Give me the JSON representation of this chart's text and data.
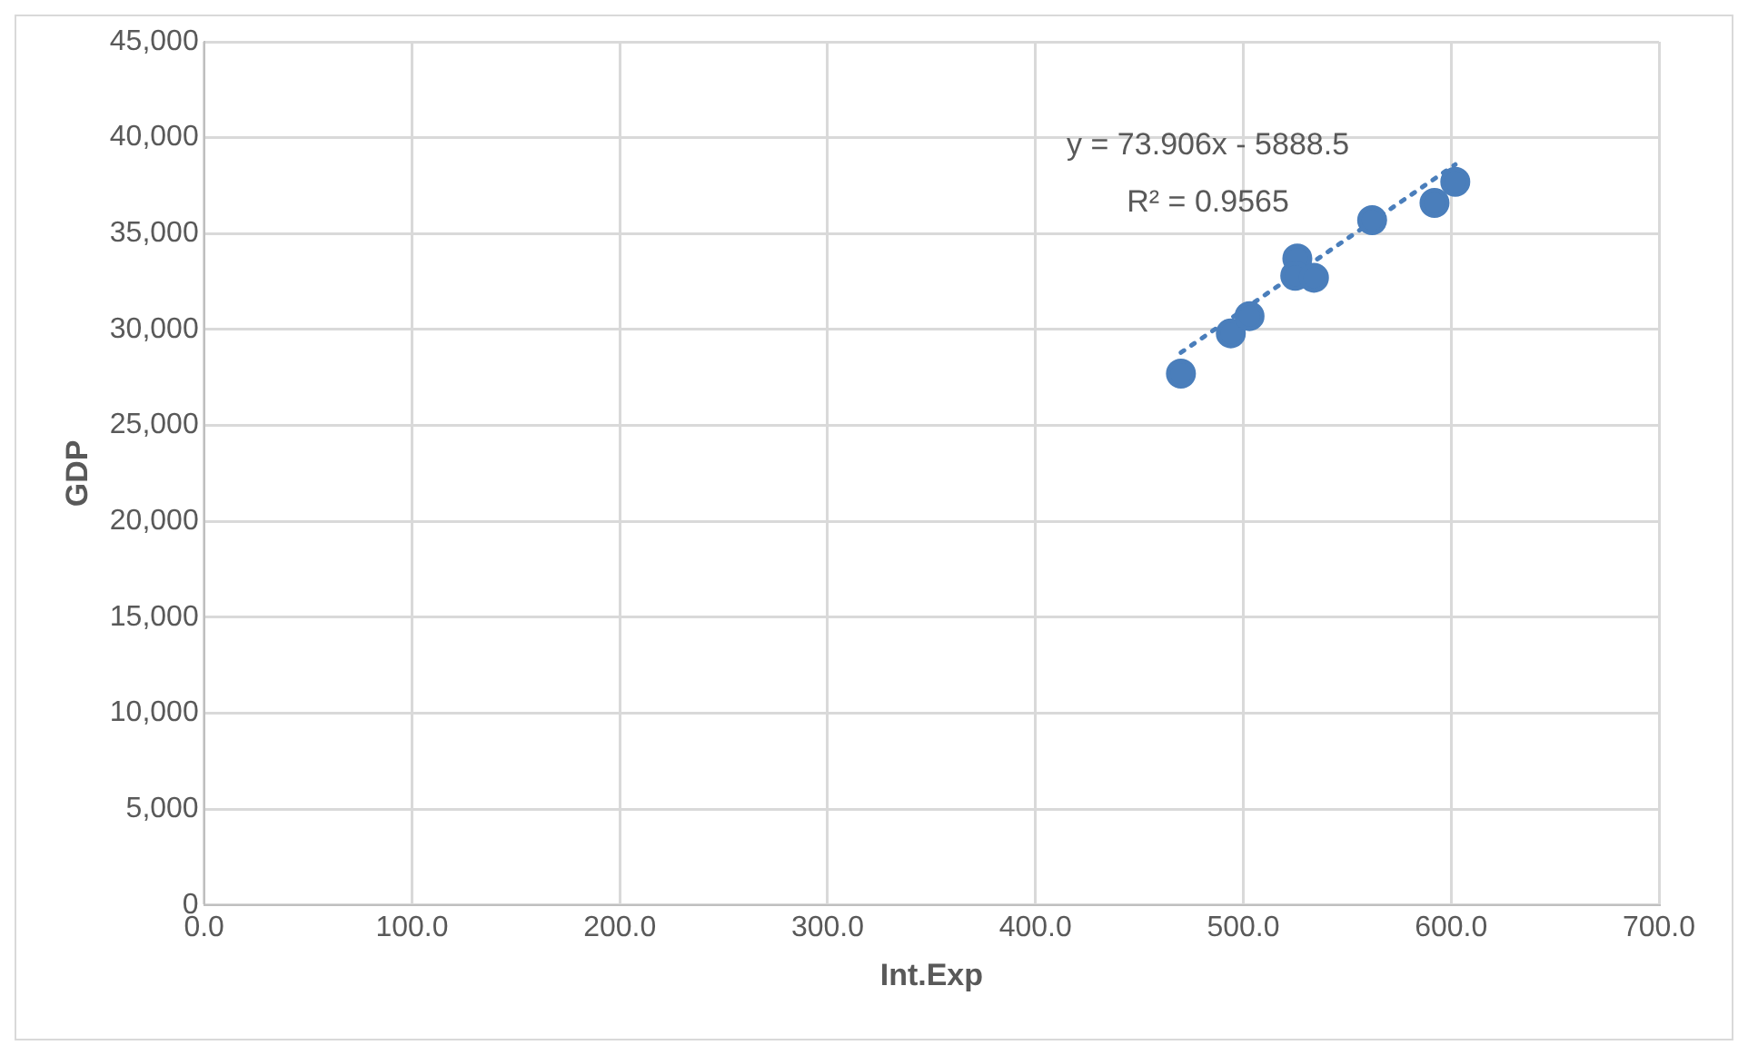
{
  "chart_data": {
    "type": "scatter",
    "xlabel": "Int.Exp",
    "ylabel": "GDP",
    "xlim": [
      0,
      700
    ],
    "xticks": [
      {
        "value": 0,
        "label": "0.0"
      },
      {
        "value": 100,
        "label": "100.0"
      },
      {
        "value": 200,
        "label": "200.0"
      },
      {
        "value": 300,
        "label": "300.0"
      },
      {
        "value": 400,
        "label": "400.0"
      },
      {
        "value": 500,
        "label": "500.0"
      },
      {
        "value": 600,
        "label": "600.0"
      },
      {
        "value": 700,
        "label": "700.0"
      }
    ],
    "ylim": [
      0,
      45000
    ],
    "yticks": [
      {
        "value": 0,
        "label": "0"
      },
      {
        "value": 5000,
        "label": "5,000"
      },
      {
        "value": 10000,
        "label": "10,000"
      },
      {
        "value": 15000,
        "label": "15,000"
      },
      {
        "value": 20000,
        "label": "20,000"
      },
      {
        "value": 25000,
        "label": "25,000"
      },
      {
        "value": 30000,
        "label": "30,000"
      },
      {
        "value": 35000,
        "label": "35,000"
      },
      {
        "value": 40000,
        "label": "40,000"
      },
      {
        "value": 45000,
        "label": "45,000"
      }
    ],
    "grid": true,
    "marker": "circle",
    "series": [
      {
        "color": "#4a7ebb",
        "x": [
          470,
          494,
          503,
          526,
          525,
          534,
          562,
          592,
          602
        ],
        "values": [
          27700,
          29800,
          30700,
          33700,
          32800,
          32700,
          35700,
          36600,
          37700
        ]
      },
      {
        "type": "line",
        "color": "#4a7ebb",
        "line_style": "dotted",
        "marker": "none",
        "x": [
          470,
          602
        ],
        "values": [
          28800,
          38600
        ]
      }
    ],
    "annotations": [
      "y = 73.906x - 5888.5",
      "R² = 0.9565"
    ]
  }
}
